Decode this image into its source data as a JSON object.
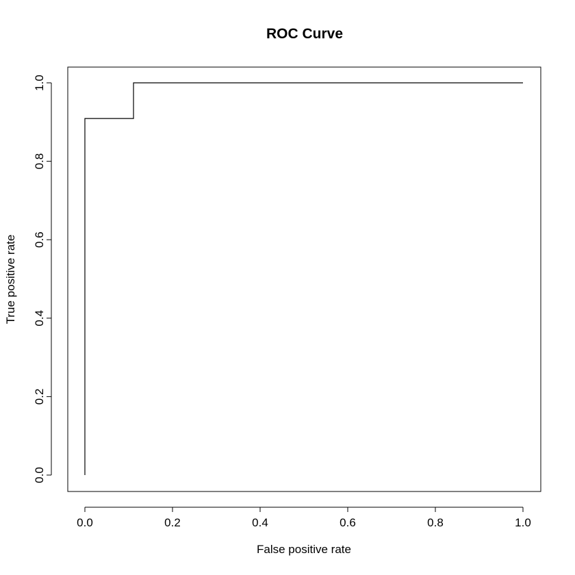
{
  "chart_data": {
    "type": "line",
    "title": "ROC Curve",
    "xlabel": "False positive rate",
    "ylabel": "True positive rate",
    "xlim": [
      0,
      1
    ],
    "ylim": [
      0,
      1
    ],
    "x_ticks": [
      0.0,
      0.2,
      0.4,
      0.6,
      0.8,
      1.0
    ],
    "x_tick_labels": [
      "0.0",
      "0.2",
      "0.4",
      "0.6",
      "0.8",
      "1.0"
    ],
    "y_ticks": [
      0.0,
      0.2,
      0.4,
      0.6,
      0.8,
      1.0
    ],
    "y_tick_labels": [
      "0.0",
      "0.2",
      "0.4",
      "0.6",
      "0.8",
      "1.0"
    ],
    "grid": false,
    "series": [
      {
        "line_color": "#000000",
        "style": "step",
        "x": [
          0.0,
          0.0,
          0.111,
          0.111,
          1.0
        ],
        "y": [
          0.0,
          0.909,
          0.909,
          1.0,
          1.0
        ]
      }
    ]
  }
}
